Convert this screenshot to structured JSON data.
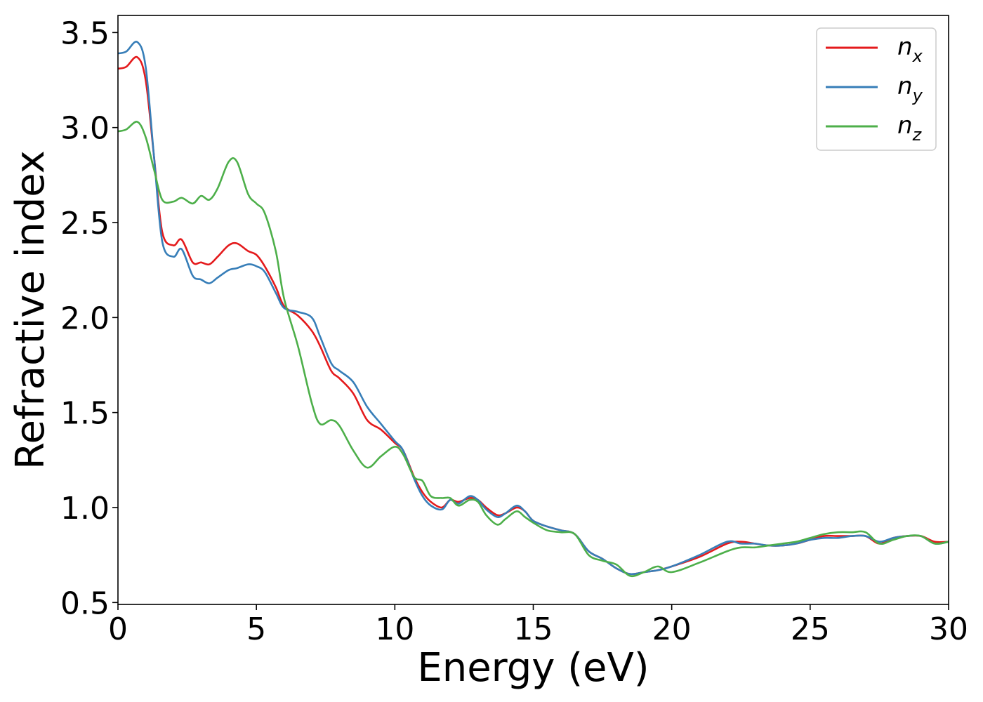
{
  "chart_data": {
    "type": "line",
    "title": "",
    "xlabel": "Energy (eV)",
    "ylabel": "Refractive index",
    "xlim": [
      0,
      30
    ],
    "ylim": [
      0.49,
      3.59
    ],
    "xticks": [
      "0",
      "5",
      "10",
      "15",
      "20",
      "25",
      "30"
    ],
    "yticks": [
      "0.5",
      "1.0",
      "1.5",
      "2.0",
      "2.5",
      "3.0",
      "3.5"
    ],
    "grid": false,
    "legend_position": "top-right",
    "x": [
      0,
      0.3,
      0.7,
      1.0,
      1.3,
      1.6,
      2.0,
      2.3,
      2.7,
      3.0,
      3.3,
      3.6,
      4.0,
      4.3,
      4.7,
      5.0,
      5.3,
      5.7,
      6.0,
      6.5,
      7.0,
      7.3,
      7.7,
      8.0,
      8.5,
      9.0,
      9.5,
      10.0,
      10.3,
      10.7,
      11.0,
      11.3,
      11.7,
      12.0,
      12.3,
      12.7,
      13.0,
      13.3,
      13.7,
      14.0,
      14.4,
      14.7,
      15.0,
      15.5,
      16.0,
      16.5,
      17.0,
      17.5,
      18.0,
      18.5,
      19.0,
      19.5,
      20.0,
      21.0,
      22.0,
      22.5,
      23.0,
      23.5,
      24.0,
      24.5,
      25.0,
      25.5,
      26.0,
      26.5,
      27.0,
      27.5,
      28.0,
      28.5,
      29.0,
      29.5,
      30.0
    ],
    "series": [
      {
        "name": "n_x",
        "label_base": "n",
        "label_sub": "x",
        "color": "#e41a1c",
        "values": [
          3.31,
          3.32,
          3.37,
          3.25,
          2.85,
          2.45,
          2.38,
          2.41,
          2.29,
          2.29,
          2.28,
          2.32,
          2.38,
          2.39,
          2.35,
          2.33,
          2.27,
          2.16,
          2.06,
          2.01,
          1.93,
          1.85,
          1.72,
          1.68,
          1.6,
          1.46,
          1.41,
          1.34,
          1.3,
          1.16,
          1.08,
          1.03,
          1.0,
          1.04,
          1.03,
          1.05,
          1.04,
          1.0,
          0.96,
          0.97,
          1.0,
          0.98,
          0.93,
          0.9,
          0.88,
          0.86,
          0.77,
          0.73,
          0.68,
          0.65,
          0.66,
          0.67,
          0.69,
          0.74,
          0.81,
          0.82,
          0.81,
          0.8,
          0.8,
          0.81,
          0.83,
          0.85,
          0.85,
          0.85,
          0.85,
          0.81,
          0.84,
          0.85,
          0.85,
          0.82,
          0.82
        ]
      },
      {
        "name": "n_y",
        "label_base": "n",
        "label_sub": "y",
        "color": "#377eb8",
        "values": [
          3.39,
          3.4,
          3.45,
          3.32,
          2.85,
          2.4,
          2.32,
          2.36,
          2.22,
          2.2,
          2.18,
          2.21,
          2.25,
          2.26,
          2.28,
          2.27,
          2.24,
          2.13,
          2.05,
          2.03,
          2.0,
          1.9,
          1.76,
          1.72,
          1.66,
          1.53,
          1.44,
          1.35,
          1.3,
          1.15,
          1.06,
          1.01,
          0.99,
          1.04,
          1.02,
          1.06,
          1.04,
          0.99,
          0.95,
          0.97,
          1.01,
          0.98,
          0.93,
          0.9,
          0.88,
          0.86,
          0.77,
          0.73,
          0.68,
          0.65,
          0.66,
          0.67,
          0.69,
          0.75,
          0.82,
          0.81,
          0.81,
          0.8,
          0.8,
          0.81,
          0.83,
          0.84,
          0.84,
          0.85,
          0.85,
          0.82,
          0.84,
          0.85,
          0.85,
          0.81,
          0.82
        ]
      },
      {
        "name": "n_z",
        "label_base": "n",
        "label_sub": "z",
        "color": "#4daf4a",
        "values": [
          2.98,
          2.99,
          3.03,
          2.95,
          2.78,
          2.62,
          2.61,
          2.63,
          2.6,
          2.64,
          2.62,
          2.68,
          2.82,
          2.82,
          2.65,
          2.6,
          2.55,
          2.35,
          2.1,
          1.85,
          1.55,
          1.44,
          1.46,
          1.43,
          1.3,
          1.21,
          1.27,
          1.32,
          1.28,
          1.16,
          1.14,
          1.06,
          1.05,
          1.05,
          1.01,
          1.04,
          1.03,
          0.96,
          0.91,
          0.94,
          0.98,
          0.95,
          0.92,
          0.88,
          0.87,
          0.86,
          0.75,
          0.72,
          0.7,
          0.64,
          0.66,
          0.69,
          0.66,
          0.71,
          0.77,
          0.79,
          0.79,
          0.8,
          0.81,
          0.82,
          0.84,
          0.86,
          0.87,
          0.87,
          0.87,
          0.81,
          0.83,
          0.85,
          0.85,
          0.81,
          0.82
        ]
      }
    ]
  }
}
